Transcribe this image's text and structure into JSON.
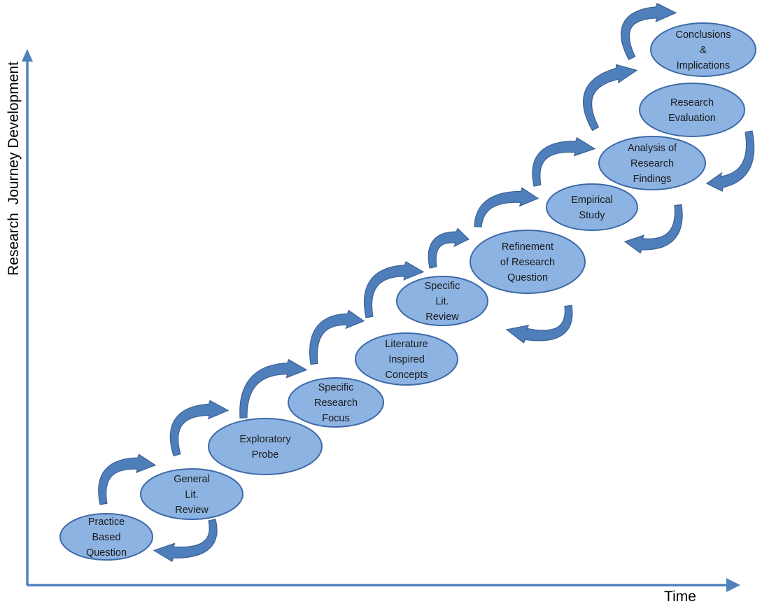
{
  "diagram": {
    "axes": {
      "x_label": "Time",
      "y_label": "Research  Journey Development"
    },
    "nodes": [
      {
        "id": "practice-based-question",
        "lines": [
          "Practice",
          "Based",
          "Question"
        ]
      },
      {
        "id": "general-lit-review",
        "lines": [
          "General",
          "Lit.",
          "Review"
        ]
      },
      {
        "id": "exploratory-probe",
        "lines": [
          "Exploratory",
          "Probe"
        ]
      },
      {
        "id": "specific-research-focus",
        "lines": [
          "Specific",
          "Research",
          "Focus"
        ]
      },
      {
        "id": "literature-inspired-concepts",
        "lines": [
          "Literature",
          "Inspired",
          "Concepts"
        ]
      },
      {
        "id": "specific-lit-review",
        "lines": [
          "Specific",
          "Lit.",
          "Review"
        ]
      },
      {
        "id": "refinement-of-research-question",
        "lines": [
          "Refinement",
          "of Research",
          "Question"
        ]
      },
      {
        "id": "empirical-study",
        "lines": [
          "Empirical",
          "Study"
        ]
      },
      {
        "id": "analysis-of-research-findings",
        "lines": [
          "Analysis of",
          "Research",
          "Findings"
        ]
      },
      {
        "id": "research-evaluation",
        "lines": [
          "Research",
          "Evaluation"
        ]
      },
      {
        "id": "conclusions-implications",
        "lines": [
          "Conclusions",
          "&",
          "Implications"
        ]
      }
    ],
    "colors": {
      "node_fill": "#8db3e2",
      "node_stroke": "#3e6aa8",
      "arrow_fill": "#4f7fba",
      "axis": "#4f81bd"
    }
  }
}
